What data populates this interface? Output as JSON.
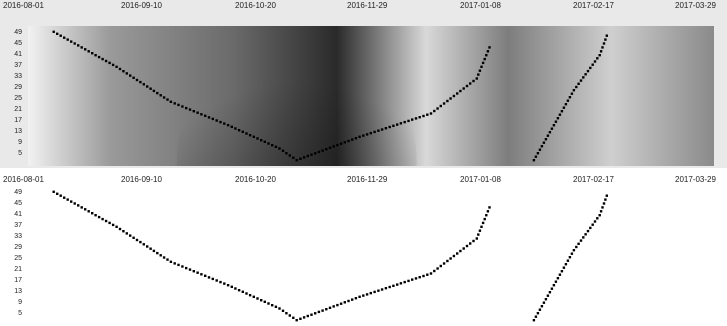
{
  "chart_data": [
    {
      "type": "heatmap",
      "title": "",
      "xlabel": "",
      "ylabel": "",
      "x_ticks": [
        "2016-08-01",
        "2016-09-10",
        "2016-10-20",
        "2016-11-29",
        "2017-01-08",
        "2017-02-17",
        "2017-03-29"
      ],
      "y_ticks": [
        "49",
        "45",
        "41",
        "37",
        "33",
        "29",
        "25",
        "21",
        "17",
        "13",
        "9",
        "5"
      ],
      "xlim": [
        "2016-08-01",
        "2017-03-29"
      ],
      "ylim": [
        3,
        51
      ],
      "colormap": "grayscale",
      "background": "#e9e9e9",
      "dark_center": {
        "x": "2016-11-03",
        "y": 5
      },
      "ridges": [
        {
          "name": "r1",
          "points": [
            [
              "2016-08-10",
              49
            ],
            [
              "2016-09-01",
              37
            ],
            [
              "2016-09-20",
              25
            ],
            [
              "2016-10-10",
              17
            ],
            [
              "2016-10-28",
              9
            ],
            [
              "2016-11-03",
              5
            ]
          ]
        },
        {
          "name": "r2",
          "points": [
            [
              "2016-11-03",
              5
            ],
            [
              "2016-11-25",
              13
            ],
            [
              "2016-12-20",
              21
            ],
            [
              "2017-01-05",
              33
            ],
            [
              "2017-01-10",
              45
            ]
          ]
        },
        {
          "name": "r3",
          "points": [
            [
              "2017-01-25",
              5
            ],
            [
              "2017-02-01",
              17
            ],
            [
              "2017-02-08",
              29
            ],
            [
              "2017-02-17",
              41
            ],
            [
              "2017-02-20",
              49
            ]
          ]
        }
      ]
    },
    {
      "type": "heatmap",
      "title": "",
      "xlabel": "",
      "ylabel": "",
      "x_ticks": [
        "2016-08-01",
        "2016-09-10",
        "2016-10-20",
        "2016-11-29",
        "2017-01-08",
        "2017-02-17",
        "2017-03-29"
      ],
      "y_ticks": [
        "49",
        "45",
        "41",
        "37",
        "33",
        "29",
        "25",
        "21",
        "17",
        "13",
        "9",
        "5"
      ],
      "xlim": [
        "2016-08-01",
        "2017-03-29"
      ],
      "ylim": [
        3,
        51
      ],
      "colormap": "binary",
      "background": "#ffffff",
      "ridges": [
        {
          "name": "r1",
          "points": [
            [
              "2016-08-10",
              49
            ],
            [
              "2016-09-01",
              37
            ],
            [
              "2016-09-20",
              25
            ],
            [
              "2016-10-10",
              17
            ],
            [
              "2016-10-28",
              9
            ],
            [
              "2016-11-03",
              5
            ]
          ]
        },
        {
          "name": "r2",
          "points": [
            [
              "2016-11-03",
              5
            ],
            [
              "2016-11-25",
              13
            ],
            [
              "2016-12-20",
              21
            ],
            [
              "2017-01-05",
              33
            ],
            [
              "2017-01-10",
              45
            ]
          ]
        },
        {
          "name": "r3",
          "points": [
            [
              "2017-01-25",
              5
            ],
            [
              "2017-02-01",
              17
            ],
            [
              "2017-02-08",
              29
            ],
            [
              "2017-02-17",
              41
            ],
            [
              "2017-02-20",
              49
            ]
          ]
        }
      ]
    }
  ]
}
